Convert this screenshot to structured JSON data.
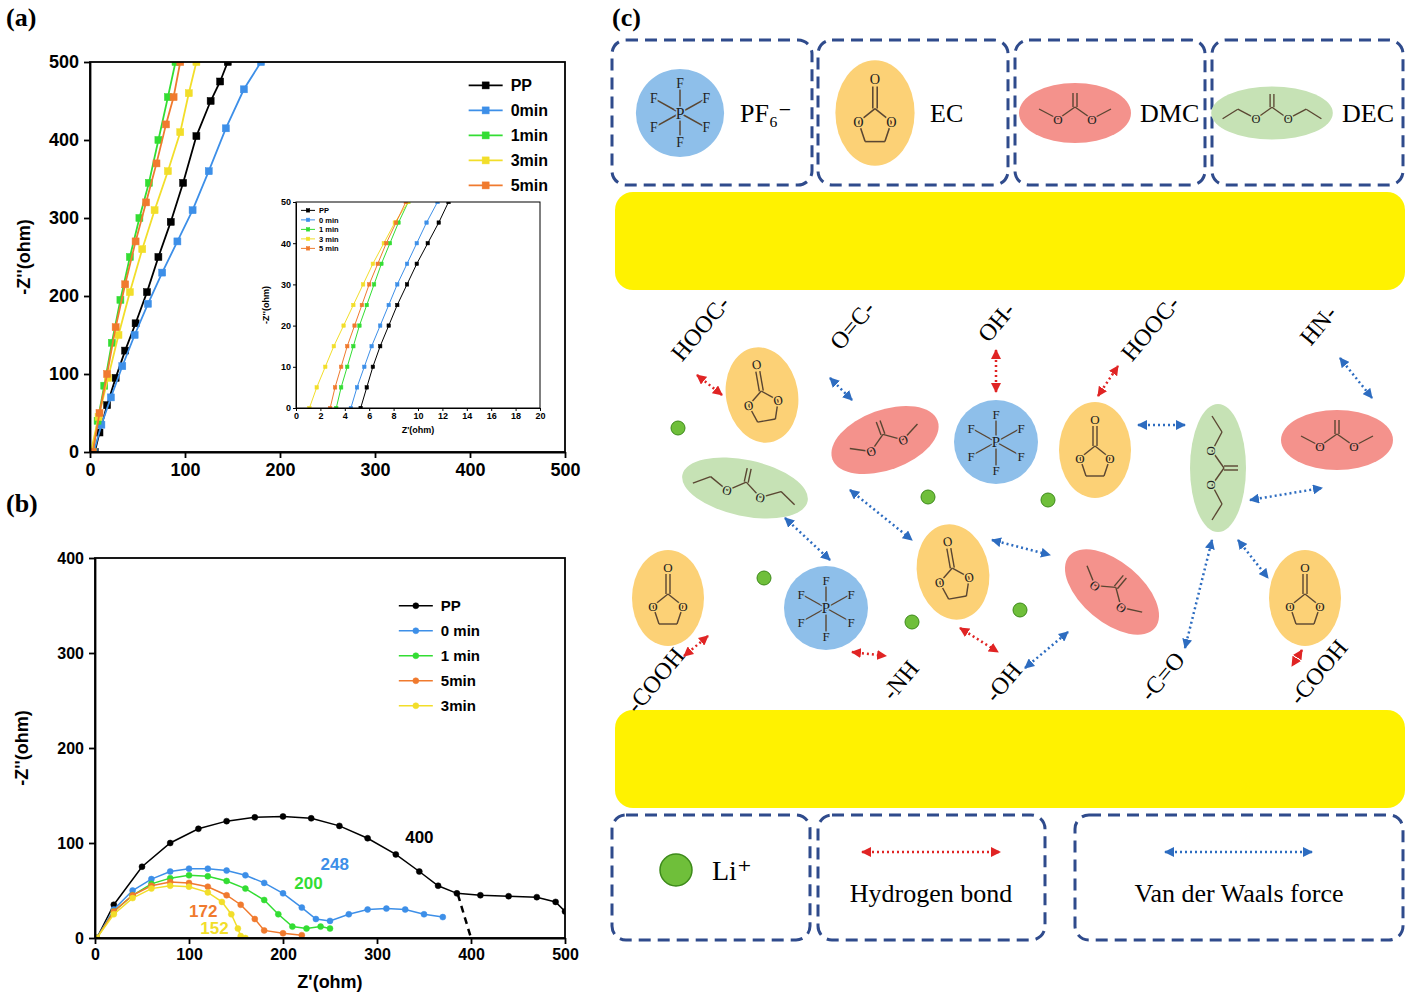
{
  "chart_data": [
    {
      "type": "line",
      "panel": "(a)",
      "ylabel": "-Z''(ohm)",
      "xlim": [
        0,
        500
      ],
      "ylim": [
        0,
        500
      ],
      "xticks": [
        0,
        100,
        200,
        300,
        400,
        500
      ],
      "yticks": [
        0,
        100,
        200,
        300,
        400,
        500
      ],
      "legend": "upper right",
      "marker": "square",
      "series": [
        {
          "name": "PP",
          "color": "#000000",
          "x": [
            5,
            10,
            18,
            27,
            37,
            48,
            60,
            72,
            85,
            98,
            112,
            127,
            137,
            145
          ],
          "values": [
            0,
            25,
            60,
            95,
            130,
            165,
            205,
            250,
            295,
            345,
            405,
            450,
            475,
            500
          ]
        },
        {
          "name": "0min",
          "color": "#3d8fe8",
          "x": [
            4,
            12,
            22,
            34,
            47,
            61,
            76,
            92,
            108,
            125,
            143,
            162,
            180
          ],
          "values": [
            0,
            35,
            70,
            110,
            150,
            190,
            230,
            270,
            310,
            360,
            415,
            465,
            500
          ]
        },
        {
          "name": "1min",
          "color": "#33dd33",
          "x": [
            3,
            8,
            15,
            23,
            32,
            42,
            52,
            62,
            72,
            82,
            90
          ],
          "values": [
            0,
            40,
            85,
            140,
            195,
            250,
            300,
            345,
            400,
            455,
            500
          ]
        },
        {
          "name": "3min",
          "color": "#f2de2a",
          "x": [
            1,
            9,
            19,
            30,
            42,
            55,
            68,
            82,
            95,
            104,
            112
          ],
          "values": [
            0,
            45,
            95,
            150,
            205,
            260,
            310,
            360,
            410,
            460,
            500
          ]
        },
        {
          "name": "5min",
          "color": "#f07a2e",
          "x": [
            3,
            10,
            18,
            27,
            37,
            48,
            59,
            70,
            80,
            88,
            95
          ],
          "values": [
            0,
            50,
            100,
            160,
            215,
            270,
            320,
            370,
            420,
            455,
            500
          ]
        }
      ]
    },
    {
      "type": "line",
      "xlabel": "Z'(ohm)",
      "ylabel": "-Z''(ohm)",
      "xlim": [
        0,
        20
      ],
      "ylim": [
        0,
        50
      ],
      "xticks": [
        0,
        2,
        4,
        6,
        8,
        10,
        12,
        14,
        16,
        18,
        20
      ],
      "yticks": [
        0,
        10,
        20,
        30,
        40,
        50
      ],
      "legend": "upper left",
      "marker": "square",
      "series": [
        {
          "name": "PP",
          "color": "#000000",
          "x": [
            5.3,
            5.8,
            6.3,
            6.9,
            7.6,
            8.3,
            9.1,
            9.9,
            10.8,
            11.7,
            12.5
          ],
          "values": [
            0,
            5,
            10,
            15,
            20,
            25,
            30,
            35,
            40,
            45,
            50
          ]
        },
        {
          "name": "0 min",
          "color": "#3d8fe8",
          "x": [
            4.5,
            5.0,
            5.6,
            6.2,
            6.9,
            7.6,
            8.3,
            9.1,
            9.9,
            10.7,
            11.6
          ],
          "values": [
            0,
            5,
            10,
            15,
            20,
            25,
            30,
            35,
            40,
            45,
            50
          ]
        },
        {
          "name": "1 min",
          "color": "#33dd33",
          "x": [
            3.3,
            3.7,
            4.2,
            4.7,
            5.2,
            5.8,
            6.4,
            7.0,
            7.7,
            8.4,
            9.2
          ],
          "values": [
            0,
            5,
            10,
            15,
            20,
            25,
            30,
            35,
            40,
            45,
            50
          ]
        },
        {
          "name": "3 min",
          "color": "#f2de2a",
          "x": [
            1.1,
            1.7,
            2.4,
            3.1,
            3.9,
            4.7,
            5.5,
            6.3,
            7.2,
            8.1,
            9.2
          ],
          "values": [
            0,
            5,
            10,
            15,
            20,
            25,
            30,
            35,
            40,
            45,
            50
          ]
        },
        {
          "name": "5 min",
          "color": "#f07a2e",
          "x": [
            2.8,
            3.2,
            3.7,
            4.2,
            4.8,
            5.4,
            6.0,
            6.7,
            7.4,
            8.2,
            9.0
          ],
          "values": [
            0,
            5,
            10,
            15,
            20,
            25,
            30,
            35,
            40,
            45,
            50
          ]
        }
      ]
    },
    {
      "type": "line",
      "panel": "(b)",
      "xlabel": "Z'(ohm)",
      "ylabel": "-Z''(ohm)",
      "xlim": [
        0,
        500
      ],
      "ylim": [
        0,
        400
      ],
      "xticks": [
        0,
        100,
        200,
        300,
        400,
        500
      ],
      "yticks": [
        0,
        100,
        200,
        300,
        400
      ],
      "legend": "upper right",
      "marker": "circle",
      "series": [
        {
          "name": "PP",
          "color": "#000000",
          "x": [
            2,
            20,
            50,
            80,
            110,
            140,
            170,
            200,
            230,
            260,
            290,
            320,
            345,
            365,
            385,
            410,
            440,
            470,
            490,
            500
          ],
          "values": [
            0,
            35,
            75,
            100,
            115,
            123,
            127,
            128,
            126,
            118,
            105,
            88,
            70,
            55,
            47,
            45,
            44,
            43,
            38,
            28
          ]
        },
        {
          "name": "0 min",
          "color": "#3d8fe8",
          "x": [
            2,
            20,
            40,
            60,
            80,
            100,
            120,
            140,
            160,
            180,
            200,
            220,
            235,
            250,
            270,
            290,
            310,
            330,
            350,
            370
          ],
          "values": [
            0,
            30,
            50,
            62,
            70,
            73,
            73,
            71,
            66,
            58,
            47,
            32,
            20,
            18,
            25,
            30,
            31,
            30,
            25,
            22
          ]
        },
        {
          "name": "1 min",
          "color": "#33dd33",
          "x": [
            2,
            20,
            40,
            60,
            80,
            100,
            120,
            140,
            160,
            180,
            195,
            210,
            225,
            240,
            250
          ],
          "values": [
            0,
            28,
            45,
            57,
            63,
            66,
            65,
            60,
            52,
            40,
            25,
            12,
            10,
            12,
            10
          ]
        },
        {
          "name": "5min",
          "color": "#f07a2e",
          "x": [
            2,
            20,
            40,
            60,
            80,
            100,
            120,
            140,
            155,
            170,
            180,
            200,
            220
          ],
          "values": [
            0,
            28,
            45,
            55,
            59,
            58,
            54,
            45,
            35,
            20,
            8,
            5,
            3
          ]
        },
        {
          "name": "3min",
          "color": "#f2de2a",
          "x": [
            2,
            20,
            40,
            60,
            80,
            100,
            120,
            135,
            145,
            152,
            155,
            160
          ],
          "values": [
            0,
            25,
            42,
            52,
            55,
            54,
            48,
            38,
            25,
            10,
            2,
            0
          ]
        }
      ],
      "annotations": [
        {
          "text": "400",
          "x": 330,
          "y": 100,
          "color": "#000000"
        },
        {
          "text": "248",
          "x": 240,
          "y": 72,
          "color": "#3d8fe8"
        },
        {
          "text": "200",
          "x": 212,
          "y": 52,
          "color": "#33dd33"
        },
        {
          "text": "172",
          "x": 100,
          "y": 22,
          "color": "#f07a2e"
        },
        {
          "text": "152",
          "x": 112,
          "y": 4,
          "color": "#f2de2a"
        }
      ],
      "extrapolation": {
        "x": [
          386,
          400
        ],
        "y": [
          46,
          0
        ],
        "line_style": "dashed",
        "color": "#000000"
      }
    }
  ],
  "diagram": {
    "panel": "(c)",
    "legend_top": [
      "PF₆⁻",
      "EC",
      "DMC",
      "DEC"
    ],
    "top_groups": [
      "HOOC-",
      "O=C-",
      "OH-",
      "HOOC-",
      "HN-"
    ],
    "bottom_groups": [
      "-COOH",
      "-NH",
      "-OH",
      "-C=O",
      "-COOH"
    ],
    "legend_bottom": [
      "Li⁺",
      "Hydrogen bond",
      "Van der Waals force"
    ],
    "atoms": [
      "P",
      "F",
      "O"
    ]
  }
}
